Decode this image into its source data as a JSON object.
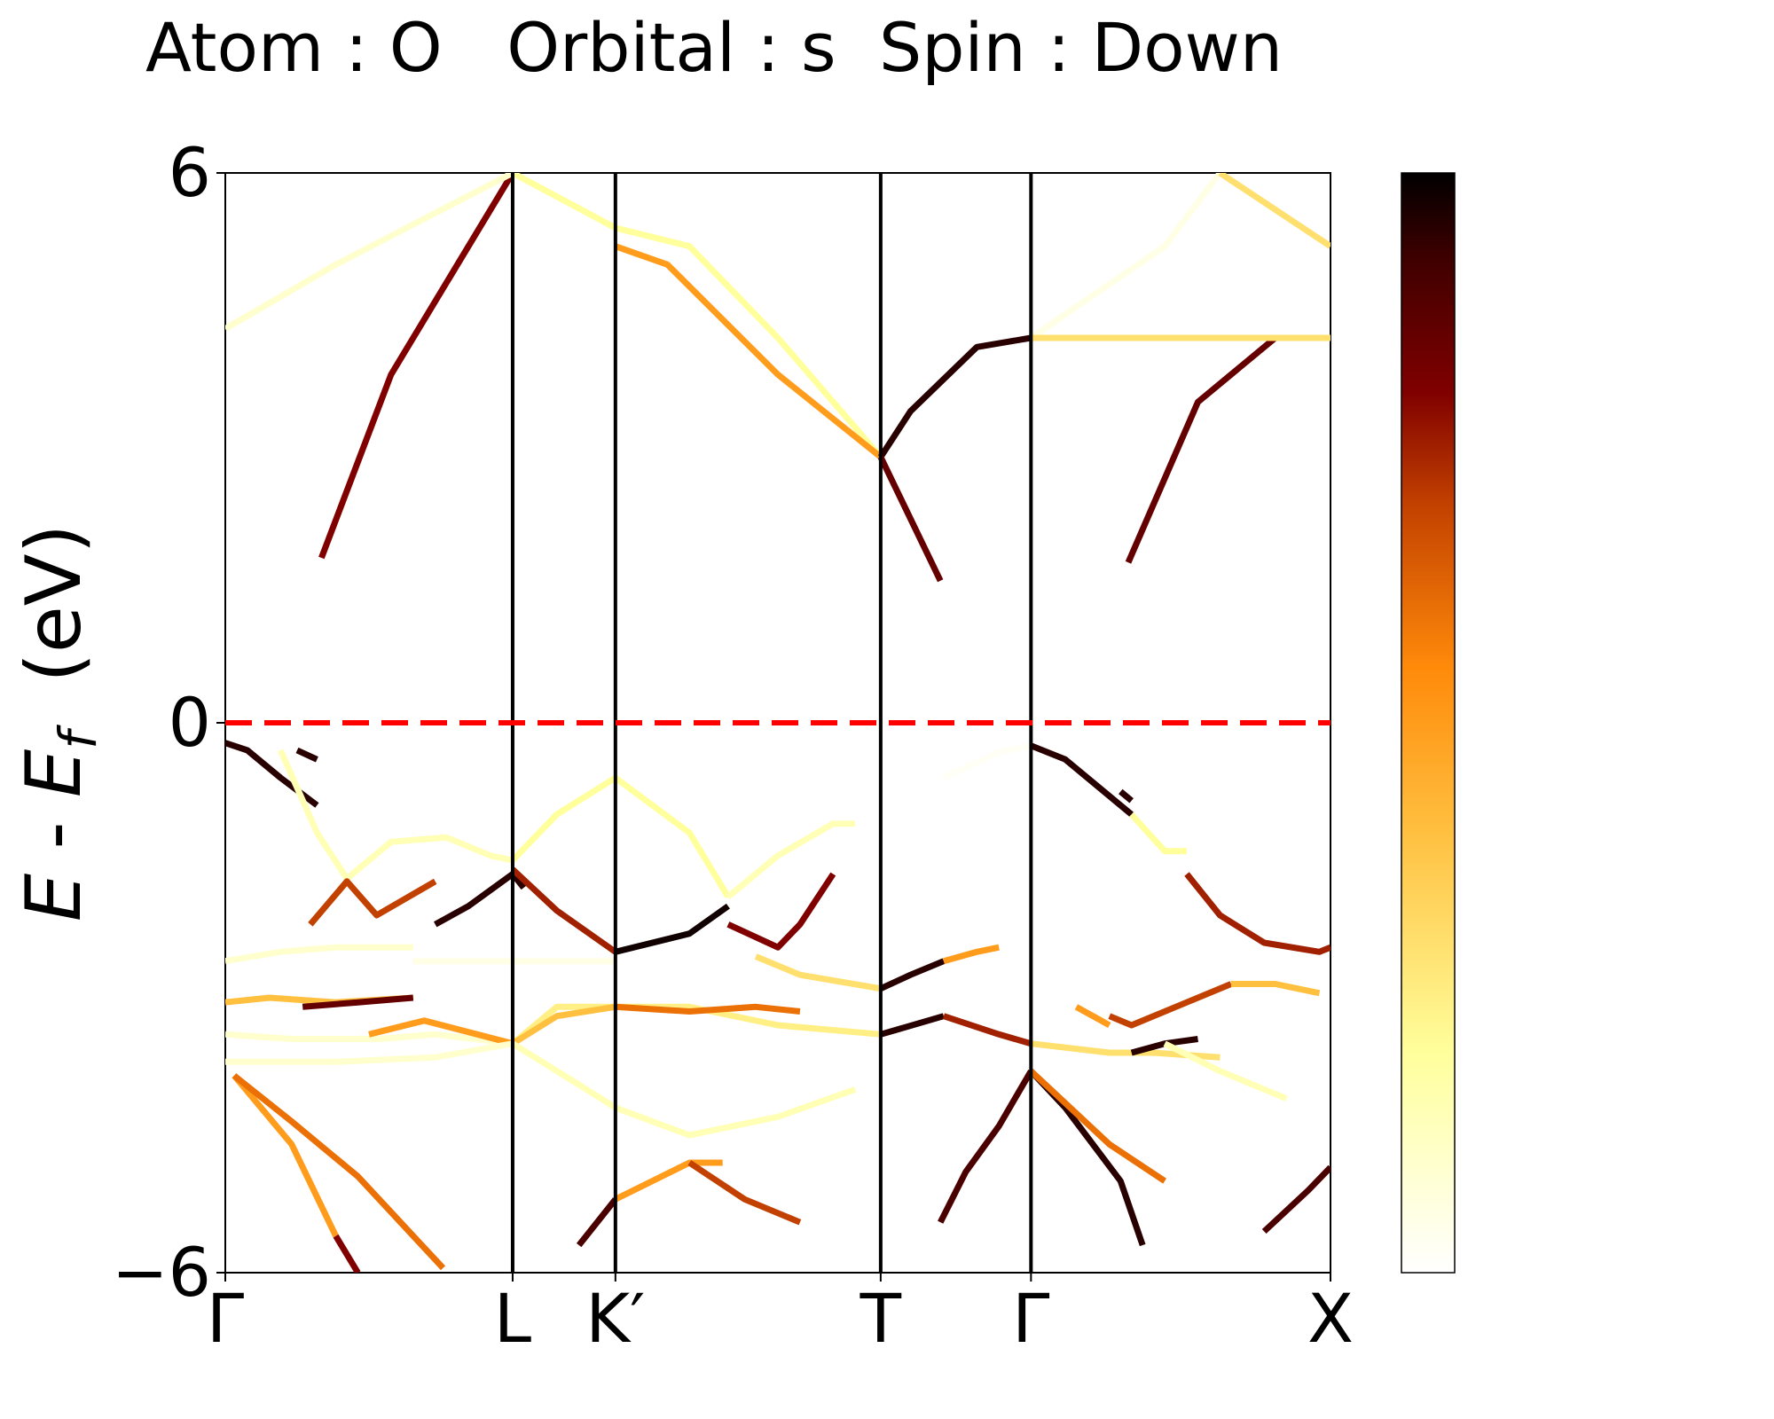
{
  "chart_data": {
    "type": "line",
    "title": "Atom : O   Orbital : s  Spin : Down",
    "ylabel_parts": {
      "e1": "E",
      "sep": " - ",
      "e2": "E",
      "sub": "f",
      "unit": "  (eV)"
    },
    "xlabel": "",
    "ylim": [
      -6,
      6
    ],
    "xlim": [
      0,
      1
    ],
    "yticks": [
      {
        "value": 6,
        "label": "6"
      },
      {
        "value": 0,
        "label": "0"
      },
      {
        "value": -6,
        "label": "−6"
      }
    ],
    "kpoints": [
      {
        "label": "Γ",
        "x": 0.0
      },
      {
        "label": "L",
        "x": 0.26
      },
      {
        "label": "K′",
        "x": 0.353
      },
      {
        "label": "T",
        "x": 0.593
      },
      {
        "label": "Γ",
        "x": 0.729
      },
      {
        "label": "X",
        "x": 1.0
      }
    ],
    "fermi_level": {
      "value": 0,
      "color": "#ff0000",
      "style": "dashed"
    },
    "colormap": "afmhot_r",
    "colorbar": {
      "min": 0,
      "max": 1,
      "ticks": []
    },
    "series": [
      {
        "w": 0.8,
        "points": [
          [
            0.087,
            1.8
          ],
          [
            0.15,
            3.8
          ],
          [
            0.26,
            6.0
          ]
        ]
      },
      {
        "w": 0.1,
        "points": [
          [
            0.0,
            4.3
          ],
          [
            0.1,
            5.0
          ],
          [
            0.26,
            6.0
          ]
        ]
      },
      {
        "w": 0.2,
        "points": [
          [
            0.26,
            6.0
          ],
          [
            0.353,
            5.4
          ],
          [
            0.42,
            5.2
          ],
          [
            0.5,
            4.2
          ],
          [
            0.593,
            2.9
          ]
        ]
      },
      {
        "w": 0.5,
        "points": [
          [
            0.353,
            5.2
          ],
          [
            0.4,
            5.0
          ],
          [
            0.5,
            3.8
          ],
          [
            0.593,
            2.9
          ]
        ]
      },
      {
        "w": 0.95,
        "points": [
          [
            0.593,
            2.9
          ],
          [
            0.62,
            3.4
          ],
          [
            0.68,
            4.1
          ],
          [
            0.729,
            4.2
          ]
        ]
      },
      {
        "w": 0.85,
        "points": [
          [
            0.593,
            2.9
          ],
          [
            0.625,
            2.1
          ],
          [
            0.647,
            1.55
          ]
        ]
      },
      {
        "w": 0.05,
        "points": [
          [
            0.729,
            4.2
          ],
          [
            0.85,
            5.2
          ],
          [
            0.9,
            6.0
          ]
        ]
      },
      {
        "w": 0.3,
        "points": [
          [
            0.9,
            6.0
          ],
          [
            1.0,
            5.2
          ]
        ]
      },
      {
        "w": 0.85,
        "points": [
          [
            0.817,
            1.75
          ],
          [
            0.88,
            3.5
          ],
          [
            0.95,
            4.2
          ],
          [
            1.0,
            4.2
          ]
        ]
      },
      {
        "w": 0.3,
        "points": [
          [
            0.729,
            4.2
          ],
          [
            0.8,
            4.2
          ],
          [
            0.95,
            4.2
          ],
          [
            1.0,
            4.2
          ]
        ]
      },
      {
        "w": 0.95,
        "points": [
          [
            0.0,
            -0.22
          ],
          [
            0.02,
            -0.3
          ],
          [
            0.05,
            -0.6
          ],
          [
            0.083,
            -0.9
          ]
        ]
      },
      {
        "w": 0.95,
        "points": [
          [
            0.065,
            -0.3
          ],
          [
            0.083,
            -0.4
          ]
        ]
      },
      {
        "w": 0.15,
        "points": [
          [
            0.05,
            -0.3
          ],
          [
            0.083,
            -1.2
          ],
          [
            0.11,
            -1.7
          ]
        ]
      },
      {
        "w": 0.15,
        "points": [
          [
            0.11,
            -1.7
          ],
          [
            0.15,
            -1.3
          ],
          [
            0.2,
            -1.25
          ],
          [
            0.24,
            -1.45
          ],
          [
            0.26,
            -1.5
          ]
        ]
      },
      {
        "w": 0.7,
        "points": [
          [
            0.077,
            -2.2
          ],
          [
            0.11,
            -1.73
          ],
          [
            0.137,
            -2.1
          ],
          [
            0.19,
            -1.73
          ]
        ]
      },
      {
        "w": 0.95,
        "points": [
          [
            0.19,
            -2.2
          ],
          [
            0.22,
            -2.0
          ],
          [
            0.26,
            -1.65
          ]
        ]
      },
      {
        "w": 0.95,
        "points": [
          [
            0.26,
            -1.65
          ],
          [
            0.27,
            -1.8
          ]
        ]
      },
      {
        "w": 0.75,
        "points": [
          [
            0.26,
            -1.6
          ],
          [
            0.3,
            -2.05
          ],
          [
            0.353,
            -2.5
          ]
        ]
      },
      {
        "w": 0.98,
        "points": [
          [
            0.353,
            -2.5
          ],
          [
            0.42,
            -2.3
          ],
          [
            0.455,
            -2.0
          ]
        ]
      },
      {
        "w": 0.2,
        "points": [
          [
            0.26,
            -1.5
          ],
          [
            0.3,
            -1.0
          ],
          [
            0.353,
            -0.6
          ],
          [
            0.42,
            -1.2
          ],
          [
            0.455,
            -1.9
          ]
        ]
      },
      {
        "w": 0.15,
        "points": [
          [
            0.455,
            -1.9
          ],
          [
            0.5,
            -1.45
          ],
          [
            0.55,
            -1.1
          ],
          [
            0.57,
            -1.1
          ]
        ]
      },
      {
        "w": 0.8,
        "points": [
          [
            0.455,
            -2.2
          ],
          [
            0.5,
            -2.45
          ],
          [
            0.52,
            -2.2
          ],
          [
            0.55,
            -1.65
          ]
        ]
      },
      {
        "w": 0.3,
        "points": [
          [
            0.48,
            -2.55
          ],
          [
            0.52,
            -2.75
          ],
          [
            0.593,
            -2.9
          ]
        ]
      },
      {
        "w": 0.95,
        "points": [
          [
            0.593,
            -2.9
          ],
          [
            0.62,
            -2.75
          ],
          [
            0.65,
            -2.6
          ]
        ]
      },
      {
        "w": 0.5,
        "points": [
          [
            0.65,
            -2.6
          ],
          [
            0.68,
            -2.5
          ],
          [
            0.7,
            -2.45
          ]
        ]
      },
      {
        "w": 0.1,
        "points": [
          [
            0.0,
            -3.4
          ],
          [
            0.06,
            -3.45
          ],
          [
            0.14,
            -3.45
          ],
          [
            0.19,
            -3.4
          ],
          [
            0.26,
            -3.5
          ]
        ]
      },
      {
        "w": 0.25,
        "points": [
          [
            0.26,
            -3.5
          ],
          [
            0.3,
            -3.1
          ],
          [
            0.353,
            -3.1
          ],
          [
            0.42,
            -3.1
          ],
          [
            0.5,
            -3.3
          ],
          [
            0.593,
            -3.4
          ]
        ]
      },
      {
        "w": 0.95,
        "points": [
          [
            0.593,
            -3.4
          ],
          [
            0.65,
            -3.2
          ]
        ]
      },
      {
        "w": 0.75,
        "points": [
          [
            0.65,
            -3.2
          ],
          [
            0.7,
            -3.4
          ],
          [
            0.729,
            -3.5
          ]
        ]
      },
      {
        "w": 0.4,
        "points": [
          [
            0.0,
            -3.05
          ],
          [
            0.04,
            -3.0
          ],
          [
            0.1,
            -3.05
          ],
          [
            0.17,
            -3.0
          ]
        ]
      },
      {
        "w": 0.85,
        "points": [
          [
            0.07,
            -3.1
          ],
          [
            0.12,
            -3.05
          ],
          [
            0.17,
            -3.0
          ]
        ]
      },
      {
        "w": 0.5,
        "points": [
          [
            0.13,
            -3.4
          ],
          [
            0.18,
            -3.25
          ],
          [
            0.26,
            -3.5
          ]
        ]
      },
      {
        "w": 0.4,
        "points": [
          [
            0.26,
            -3.5
          ],
          [
            0.3,
            -3.2
          ],
          [
            0.353,
            -3.1
          ]
        ]
      },
      {
        "w": 0.6,
        "points": [
          [
            0.353,
            -3.1
          ],
          [
            0.42,
            -3.15
          ],
          [
            0.48,
            -3.1
          ],
          [
            0.52,
            -3.15
          ]
        ]
      },
      {
        "w": 0.1,
        "points": [
          [
            0.0,
            -2.6
          ],
          [
            0.05,
            -2.5
          ],
          [
            0.1,
            -2.45
          ],
          [
            0.17,
            -2.45
          ]
        ]
      },
      {
        "w": 0.05,
        "points": [
          [
            0.17,
            -2.6
          ],
          [
            0.26,
            -2.6
          ],
          [
            0.353,
            -2.6
          ]
        ]
      },
      {
        "w": 0.1,
        "points": [
          [
            0.0,
            -3.7
          ],
          [
            0.1,
            -3.7
          ],
          [
            0.19,
            -3.65
          ],
          [
            0.26,
            -3.5
          ]
        ]
      },
      {
        "w": 0.15,
        "points": [
          [
            0.26,
            -3.5
          ],
          [
            0.3,
            -3.8
          ],
          [
            0.34,
            -4.1
          ],
          [
            0.353,
            -4.2
          ]
        ]
      },
      {
        "w": 0.15,
        "points": [
          [
            0.353,
            -4.2
          ],
          [
            0.42,
            -4.5
          ],
          [
            0.5,
            -4.3
          ],
          [
            0.57,
            -4.0
          ]
        ]
      },
      {
        "w": 0.5,
        "points": [
          [
            0.008,
            -3.85
          ],
          [
            0.06,
            -4.6
          ],
          [
            0.1,
            -5.6
          ]
        ]
      },
      {
        "w": 0.8,
        "points": [
          [
            0.1,
            -5.6
          ],
          [
            0.12,
            -6.0
          ]
        ]
      },
      {
        "w": 0.6,
        "points": [
          [
            0.008,
            -3.85
          ],
          [
            0.06,
            -4.35
          ],
          [
            0.12,
            -4.95
          ],
          [
            0.197,
            -5.95
          ]
        ]
      },
      {
        "w": 0.9,
        "points": [
          [
            0.32,
            -5.7
          ],
          [
            0.353,
            -5.2
          ]
        ]
      },
      {
        "w": 0.5,
        "points": [
          [
            0.353,
            -5.2
          ],
          [
            0.42,
            -4.8
          ],
          [
            0.45,
            -4.8
          ]
        ]
      },
      {
        "w": 0.7,
        "points": [
          [
            0.42,
            -4.8
          ],
          [
            0.47,
            -5.2
          ],
          [
            0.52,
            -5.45
          ]
        ]
      },
      {
        "w": 0.9,
        "points": [
          [
            0.647,
            -5.45
          ],
          [
            0.67,
            -4.9
          ],
          [
            0.7,
            -4.4
          ],
          [
            0.729,
            -3.8
          ]
        ]
      },
      {
        "w": 0.95,
        "points": [
          [
            0.729,
            -3.8
          ],
          [
            0.76,
            -4.2
          ],
          [
            0.81,
            -5.0
          ],
          [
            0.83,
            -5.7
          ]
        ]
      },
      {
        "w": 0.6,
        "points": [
          [
            0.729,
            -3.8
          ],
          [
            0.8,
            -4.6
          ],
          [
            0.85,
            -5.0
          ]
        ]
      },
      {
        "w": 0.9,
        "points": [
          [
            0.94,
            -5.55
          ],
          [
            0.98,
            -5.1
          ],
          [
            1.0,
            -4.85
          ]
        ]
      },
      {
        "w": 0.02,
        "points": [
          [
            0.65,
            -0.6
          ],
          [
            0.7,
            -0.32
          ],
          [
            0.729,
            -0.25
          ]
        ]
      },
      {
        "w": 0.95,
        "points": [
          [
            0.729,
            -0.25
          ],
          [
            0.76,
            -0.4
          ],
          [
            0.82,
            -1.0
          ]
        ]
      },
      {
        "w": 0.2,
        "points": [
          [
            0.82,
            -1.0
          ],
          [
            0.85,
            -1.4
          ],
          [
            0.87,
            -1.4
          ]
        ]
      },
      {
        "w": 0.75,
        "points": [
          [
            0.87,
            -1.65
          ],
          [
            0.9,
            -2.1
          ],
          [
            0.94,
            -2.4
          ],
          [
            0.99,
            -2.5
          ],
          [
            1.0,
            -2.45
          ]
        ]
      },
      {
        "w": 0.95,
        "points": [
          [
            0.81,
            -0.75
          ],
          [
            0.82,
            -0.85
          ]
        ]
      },
      {
        "w": 0.3,
        "points": [
          [
            0.729,
            -3.5
          ],
          [
            0.8,
            -3.6
          ],
          [
            0.84,
            -3.6
          ],
          [
            0.9,
            -3.65
          ]
        ]
      },
      {
        "w": 0.7,
        "points": [
          [
            0.8,
            -3.2
          ],
          [
            0.82,
            -3.3
          ],
          [
            0.86,
            -3.1
          ],
          [
            0.91,
            -2.85
          ]
        ]
      },
      {
        "w": 0.95,
        "points": [
          [
            0.82,
            -3.6
          ],
          [
            0.85,
            -3.5
          ],
          [
            0.88,
            -3.45
          ]
        ]
      },
      {
        "w": 0.4,
        "points": [
          [
            0.91,
            -2.85
          ],
          [
            0.95,
            -2.85
          ],
          [
            0.99,
            -2.95
          ]
        ]
      },
      {
        "w": 0.15,
        "points": [
          [
            0.85,
            -3.5
          ],
          [
            0.9,
            -3.8
          ],
          [
            0.96,
            -4.1
          ]
        ]
      },
      {
        "w": 0.5,
        "points": [
          [
            0.77,
            -3.1
          ],
          [
            0.8,
            -3.3
          ]
        ]
      }
    ]
  }
}
